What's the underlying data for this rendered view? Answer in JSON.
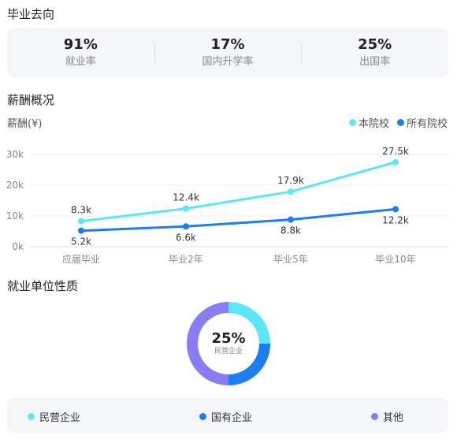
{
  "sections": {
    "employment": "毕业去向",
    "salary": "薪酬概况",
    "employer_type": "就业单位性质"
  },
  "stats": [
    {
      "value": "91%",
      "label": "就业率"
    },
    {
      "value": "17%",
      "label": "国内升学率"
    },
    {
      "value": "25%",
      "label": "出国率"
    }
  ],
  "colors": {
    "school": "#5ce7f6",
    "all": "#1a7ff0",
    "other": "#8a7cf6"
  },
  "chart_data": {
    "type": "line",
    "title": "薪酬概况",
    "ylabel": "薪酬(¥)",
    "categories": [
      "应届毕业",
      "毕业2年",
      "毕业5年",
      "毕业10年"
    ],
    "yticks": [
      "0k",
      "10k",
      "20k",
      "30k"
    ],
    "ylim": [
      0,
      30
    ],
    "legend_position": "top-right",
    "series": [
      {
        "name": "本院校",
        "values": [
          8.3,
          12.4,
          17.9,
          27.5
        ],
        "labels": [
          "8.3k",
          "12.4k",
          "17.9k",
          "27.5k"
        ]
      },
      {
        "name": "所有院校",
        "values": [
          5.2,
          6.6,
          8.8,
          12.2
        ],
        "labels": [
          "5.2k",
          "6.6k",
          "8.8k",
          "12.2k"
        ]
      }
    ]
  },
  "donut": {
    "center_value": "25%",
    "center_label": "民营企业",
    "slices": [
      {
        "name": "民营企业",
        "value": 25
      },
      {
        "name": "国有企业",
        "value": 25
      },
      {
        "name": "其他",
        "value": 50
      }
    ]
  }
}
